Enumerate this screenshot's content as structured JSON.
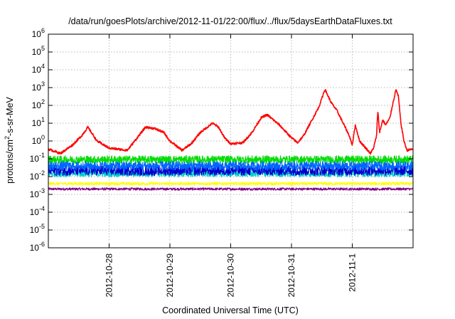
{
  "chart_data": {
    "type": "line",
    "title": "/data/run/goesPlots/archive/2012-11-01/22:00/flux/../flux/5daysEarthDataFluxes.txt",
    "xlabel": "Coordinated Universal Time (UTC)",
    "ylabel": {
      "prefix": "protons/cm",
      "sup": "2",
      "suffix": "-s-sr-MeV"
    },
    "x_ticks": [
      "2012-10-28",
      "2012-10-29",
      "2012-10-30",
      "2012-10-31",
      "2012-11-1"
    ],
    "x_tick_days": [
      28,
      29,
      30,
      31,
      32
    ],
    "xlim_days": [
      27.0,
      33.0
    ],
    "y_scale": "log",
    "ylim": [
      1e-06,
      1000000.0
    ],
    "y_ticks": [
      {
        "base": "10",
        "exp": "-6",
        "value": 1e-06
      },
      {
        "base": "10",
        "exp": "-5",
        "value": 1e-05
      },
      {
        "base": "10",
        "exp": "-4",
        "value": 0.0001
      },
      {
        "base": "10",
        "exp": "-3",
        "value": 0.001
      },
      {
        "base": "10",
        "exp": "-2",
        "value": 0.01
      },
      {
        "base": "10",
        "exp": "-1",
        "value": 0.1
      },
      {
        "base": "10",
        "exp": "0",
        "value": 1
      },
      {
        "base": "10",
        "exp": "1",
        "value": 10
      },
      {
        "base": "10",
        "exp": "2",
        "value": 100
      },
      {
        "base": "10",
        "exp": "3",
        "value": 1000
      },
      {
        "base": "10",
        "exp": "4",
        "value": 10000
      },
      {
        "base": "10",
        "exp": "5",
        "value": 100000
      },
      {
        "base": "10",
        "exp": "6",
        "value": 1000000
      }
    ],
    "grid": true,
    "series": [
      {
        "color": "#800080",
        "noisy": true,
        "noise": 0.07,
        "x": [
          27.0,
          33.0
        ],
        "y": [
          0.002,
          0.002
        ]
      },
      {
        "color": "#ffff00",
        "noisy": true,
        "noise": 0.08,
        "x": [
          27.0,
          33.0
        ],
        "y": [
          0.004,
          0.004
        ]
      },
      {
        "color": "#00cccc",
        "noisy": true,
        "noise": 0.2,
        "x": [
          27.0,
          33.0
        ],
        "y": [
          0.015,
          0.015
        ]
      },
      {
        "color": "#00dd00",
        "noisy": true,
        "noise": 0.22,
        "x": [
          27.0,
          33.0
        ],
        "y": [
          0.09,
          0.09
        ]
      },
      {
        "color": "#0000cc",
        "noisy": true,
        "noise": 0.28,
        "x": [
          27.0,
          33.0
        ],
        "y": [
          0.022,
          0.022
        ]
      },
      {
        "color": "#0066ff",
        "noisy": true,
        "noise": 0.25,
        "x": [
          27.0,
          33.0
        ],
        "y": [
          0.04,
          0.04
        ]
      },
      {
        "color": "#ff0000",
        "noisy": true,
        "noise": 0.06,
        "x": [
          27.0,
          27.2,
          27.4,
          27.55,
          27.65,
          27.8,
          28.0,
          28.3,
          28.6,
          28.75,
          28.9,
          29.0,
          29.2,
          29.35,
          29.5,
          29.7,
          29.8,
          29.9,
          30.0,
          30.2,
          30.35,
          30.5,
          30.6,
          30.8,
          31.0,
          31.1,
          31.2,
          31.45,
          31.55,
          31.6,
          31.65,
          31.75,
          31.85,
          31.95,
          32.0,
          32.05,
          32.12,
          32.3,
          32.35,
          32.4,
          32.42,
          32.45,
          32.5,
          32.55,
          32.62,
          32.66,
          32.72,
          32.76,
          32.8,
          32.85,
          32.9,
          33.0
        ],
        "y": [
          0.35,
          0.2,
          0.6,
          2.0,
          6.0,
          1.0,
          0.4,
          0.3,
          6.0,
          5.0,
          3.0,
          1.0,
          0.3,
          0.7,
          3.0,
          10.0,
          6.0,
          1.5,
          0.7,
          0.8,
          3.0,
          20.0,
          30.0,
          8.0,
          1.5,
          0.8,
          2.0,
          80.0,
          800.0,
          350.0,
          150.0,
          50.0,
          10.0,
          2.0,
          0.6,
          8.0,
          1.0,
          0.2,
          0.4,
          2.0,
          50.0,
          3.0,
          15.0,
          8.0,
          20.0,
          100.0,
          800.0,
          300.0,
          10.0,
          1.0,
          0.3,
          0.35
        ]
      }
    ]
  }
}
